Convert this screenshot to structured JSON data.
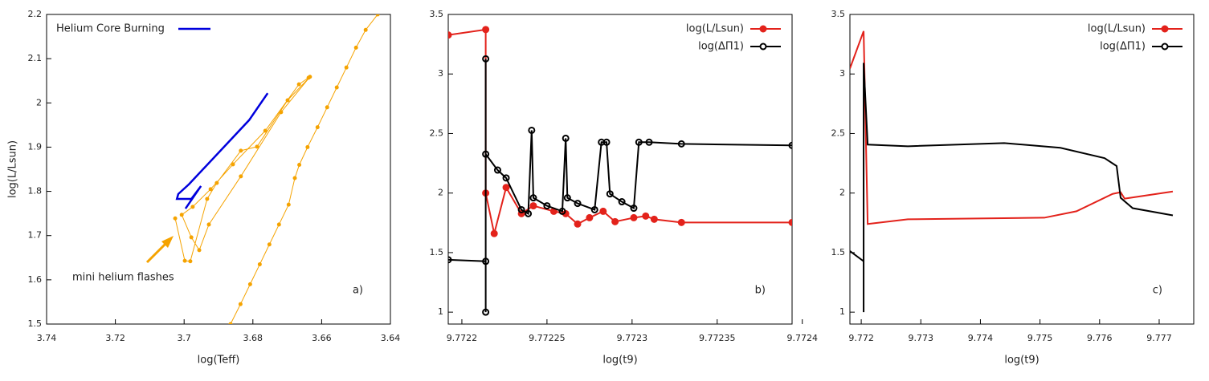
{
  "chart_data": [
    {
      "type": "line",
      "xlabel": "log(Teff)",
      "ylabel": "log(L/Lsun)",
      "xlim": [
        3.74,
        3.64
      ],
      "xticks": [
        3.74,
        3.72,
        3.7,
        3.68,
        3.66,
        3.64
      ],
      "ylim": [
        1.5,
        2.2
      ],
      "yticks": [
        1.5,
        1.6,
        1.7,
        1.8,
        1.9,
        2,
        2.1,
        2.2
      ],
      "legend": "top-left",
      "annotations": [
        "mini helium flashes",
        "a)"
      ],
      "series": [
        {
          "name": "Helium Core Burning",
          "color": "#0000dd",
          "marker": false,
          "x": [
            3.6757,
            3.6811,
            3.6986,
            3.7017,
            3.7021,
            3.6979,
            3.6951,
            3.6996
          ],
          "values": [
            2.022,
            1.961,
            1.816,
            1.794,
            1.783,
            1.783,
            1.812,
            1.761
          ]
        },
        {
          "color": "#f5a300",
          "marker": true,
          "x": [
            3.7026,
            3.6998,
            3.6982,
            3.6933,
            3.6905,
            3.6835,
            3.6788,
            3.6699,
            3.6634,
            3.6718,
            3.6835,
            3.6928,
            3.6956,
            3.6979,
            3.7007,
            3.6975,
            3.6923,
            3.6858,
            3.6764,
            3.6666,
            3.6638
          ],
          "values": [
            1.739,
            1.643,
            1.642,
            1.783,
            1.819,
            1.892,
            1.901,
            2.006,
            2.059,
            1.979,
            1.834,
            1.725,
            1.667,
            1.696,
            1.747,
            1.765,
            1.805,
            1.861,
            1.937,
            2.042,
            2.057
          ]
        },
        {
          "color": "#f5a300",
          "marker": true,
          "x": [
            3.6865,
            3.6836,
            3.6808,
            3.678,
            3.6752,
            3.6724,
            3.6696,
            3.6678,
            3.6665,
            3.6641,
            3.6612,
            3.6584,
            3.6556,
            3.6528,
            3.65,
            3.6472,
            3.6437
          ],
          "values": [
            1.5,
            1.545,
            1.59,
            1.635,
            1.68,
            1.725,
            1.77,
            1.83,
            1.86,
            1.9,
            1.945,
            1.99,
            2.035,
            2.08,
            2.125,
            2.165,
            2.2
          ]
        }
      ]
    },
    {
      "type": "line",
      "xlabel": "log(t9)",
      "xlim": [
        9.772192,
        9.772394
      ],
      "xticks": [
        9.7722,
        9.77225,
        9.7723,
        9.77235,
        9.7724
      ],
      "ylim": [
        0.9,
        3.5
      ],
      "yticks": [
        1,
        1.5,
        2,
        2.5,
        3,
        3.5
      ],
      "legend": "top-right",
      "annotations": [
        "b)"
      ],
      "series": [
        {
          "name": "log(L/Lsun)",
          "color": "#e3221b",
          "marker": true,
          "marker_fill": true,
          "x": [
            9.772192,
            9.772214,
            9.772214,
            9.772219,
            9.772226,
            9.772235,
            9.772242,
            9.772254,
            9.772261,
            9.772268,
            9.772275,
            9.772283,
            9.77229,
            9.772301,
            9.772308,
            9.772313,
            9.772329,
            9.772394
          ],
          "values": [
            3.327,
            3.373,
            2.0,
            1.66,
            2.047,
            1.827,
            1.893,
            1.847,
            1.827,
            1.74,
            1.793,
            1.847,
            1.76,
            1.793,
            1.807,
            1.78,
            1.753,
            1.753
          ]
        },
        {
          "name": "log(ΔΠ1)",
          "color": "#000000",
          "marker": true,
          "marker_fill": false,
          "x": [
            9.772192,
            9.772214,
            9.772214,
            9.772214,
            9.772214,
            9.772221,
            9.772226,
            9.772235,
            9.772239,
            9.772241,
            9.772242,
            9.77225,
            9.772259,
            9.772261,
            9.772262,
            9.772268,
            9.772278,
            9.772282,
            9.772285,
            9.772287,
            9.772294,
            9.772301,
            9.772304,
            9.77231,
            9.772329,
            9.772394
          ],
          "values": [
            1.44,
            1.427,
            1.0,
            3.127,
            2.327,
            2.193,
            2.127,
            1.86,
            1.827,
            2.527,
            1.96,
            1.893,
            1.847,
            2.46,
            1.96,
            1.913,
            1.86,
            2.427,
            2.427,
            1.993,
            1.927,
            1.873,
            2.427,
            2.427,
            2.413,
            2.4
          ]
        }
      ]
    },
    {
      "type": "line",
      "xlabel": "log(t9)",
      "xlim": [
        9.77181,
        9.77758
      ],
      "xticks": [
        9.772,
        9.773,
        9.774,
        9.775,
        9.776,
        9.777
      ],
      "ylim": [
        0.9,
        3.5
      ],
      "yticks": [
        1,
        1.5,
        2,
        2.5,
        3,
        3.5
      ],
      "legend": "top-right",
      "annotations": [
        "c)"
      ],
      "series": [
        {
          "name": "log(L/Lsun)",
          "color": "#e3221b",
          "marker": false,
          "marker_fill": true,
          "x": [
            9.771811,
            9.77204,
            9.772108,
            9.772782,
            9.775073,
            9.775612,
            9.776218,
            9.776353,
            9.77642,
            9.777229
          ],
          "values": [
            3.047,
            3.36,
            1.74,
            1.78,
            1.793,
            1.847,
            1.993,
            2.007,
            1.953,
            2.013
          ]
        },
        {
          "name": "log(ΔΠ1)",
          "color": "#000000",
          "marker": false,
          "marker_fill": false,
          "x": [
            9.771811,
            9.77204,
            9.77204,
            9.77204,
            9.772108,
            9.772782,
            9.774399,
            9.775342,
            9.776084,
            9.776286,
            9.776353,
            9.776555,
            9.777229
          ],
          "values": [
            1.513,
            1.427,
            1.0,
            3.093,
            2.407,
            2.393,
            2.42,
            2.38,
            2.293,
            2.227,
            1.96,
            1.873,
            1.813
          ]
        }
      ]
    }
  ]
}
